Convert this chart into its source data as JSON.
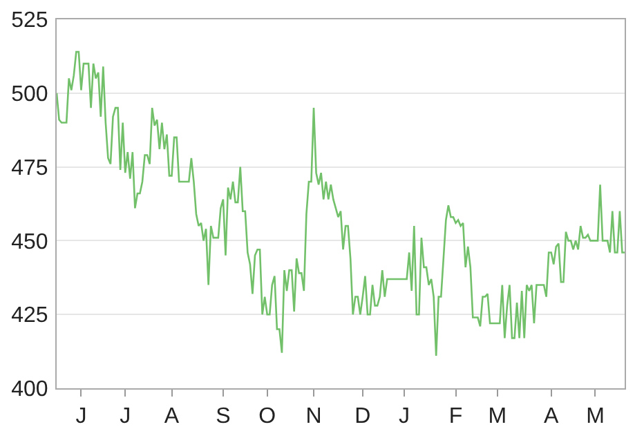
{
  "chart_data": {
    "type": "line",
    "color": "#72c16a",
    "line_style": "solid",
    "marker": "none",
    "grid": "y",
    "legend": false,
    "categories": [
      null,
      null,
      null,
      null,
      null,
      null,
      null,
      null,
      null,
      null,
      "J",
      null,
      null,
      null,
      null,
      null,
      null,
      null,
      null,
      null,
      null,
      null,
      null,
      null,
      null,
      null,
      null,
      null,
      "J",
      null,
      null,
      null,
      null,
      null,
      null,
      null,
      null,
      null,
      null,
      null,
      null,
      null,
      null,
      null,
      null,
      null,
      null,
      "A",
      null,
      null,
      null,
      null,
      null,
      null,
      null,
      null,
      null,
      null,
      null,
      null,
      null,
      null,
      null,
      null,
      null,
      null,
      null,
      null,
      "S",
      null,
      null,
      null,
      null,
      null,
      null,
      null,
      null,
      null,
      null,
      null,
      null,
      null,
      null,
      null,
      null,
      null,
      "O",
      null,
      null,
      null,
      null,
      null,
      null,
      null,
      null,
      null,
      null,
      null,
      null,
      null,
      null,
      null,
      null,
      null,
      null,
      "N",
      null,
      null,
      null,
      null,
      null,
      null,
      null,
      null,
      null,
      null,
      null,
      null,
      null,
      null,
      null,
      null,
      null,
      null,
      null,
      "D",
      null,
      null,
      null,
      null,
      null,
      null,
      null,
      null,
      null,
      null,
      null,
      null,
      null,
      null,
      null,
      null,
      "J",
      null,
      null,
      null,
      null,
      null,
      null,
      null,
      null,
      null,
      null,
      null,
      null,
      null,
      null,
      null,
      null,
      null,
      null,
      null,
      null,
      "F",
      null,
      null,
      null,
      null,
      null,
      null,
      null,
      null,
      null,
      null,
      null,
      null,
      null,
      null,
      null,
      null,
      "M",
      null,
      null,
      null,
      null,
      null,
      null,
      null,
      null,
      null,
      null,
      null,
      null,
      null,
      null,
      null,
      null,
      null,
      null,
      null,
      null,
      null,
      "A",
      null,
      null,
      null,
      null,
      null,
      null,
      null,
      null,
      null,
      null,
      null,
      null,
      null,
      null,
      null,
      null,
      null,
      "M",
      null,
      null,
      null,
      null,
      null,
      null,
      null,
      null,
      null,
      null,
      null,
      null
    ],
    "values": [
      500,
      491,
      490,
      490,
      490,
      505,
      501,
      506,
      514,
      514,
      501,
      510,
      510,
      510,
      495,
      510,
      505,
      507,
      492,
      509,
      490,
      478,
      476,
      492,
      495,
      495,
      474,
      490,
      473,
      480,
      471,
      480,
      461,
      466,
      466,
      470,
      479,
      479,
      476,
      495,
      489,
      491,
      481,
      490,
      481,
      486,
      472,
      472,
      485,
      485,
      470,
      470,
      470,
      470,
      470,
      478,
      470,
      459,
      455,
      456,
      450,
      454,
      435,
      455,
      451,
      451,
      451,
      461,
      464,
      445,
      468,
      464,
      470,
      463,
      463,
      475,
      460,
      460,
      446,
      442,
      432,
      445,
      447,
      447,
      425,
      431,
      425,
      425,
      435,
      438,
      420,
      420,
      412,
      440,
      433,
      440,
      440,
      426,
      444,
      439,
      439,
      433,
      459,
      470,
      470,
      495,
      473,
      469,
      473,
      464,
      470,
      464,
      469,
      464,
      461,
      458,
      460,
      447,
      455,
      455,
      444,
      425,
      431,
      431,
      425,
      431,
      438,
      425,
      425,
      435,
      428,
      428,
      431,
      440,
      431,
      437,
      437,
      437,
      437,
      437,
      437,
      437,
      437,
      437,
      446,
      433,
      455,
      425,
      425,
      451,
      441,
      441,
      435,
      437,
      431,
      411,
      431,
      431,
      444,
      457,
      462,
      458,
      458,
      456,
      457,
      455,
      456,
      441,
      448,
      441,
      424,
      424,
      424,
      421,
      431,
      431,
      432,
      422,
      422,
      422,
      422,
      422,
      435,
      417,
      428,
      435,
      417,
      417,
      429,
      417,
      433,
      417,
      435,
      433,
      435,
      422,
      435,
      435,
      435,
      435,
      431,
      446,
      446,
      442,
      448,
      449,
      436,
      436,
      453,
      450,
      450,
      447,
      450,
      447,
      455,
      451,
      451,
      452,
      450,
      450,
      450,
      450,
      469,
      450,
      450,
      450,
      446,
      460,
      446,
      446,
      460,
      446,
      446
    ],
    "ylim": [
      400,
      525
    ],
    "yticks": [
      400,
      425,
      450,
      475,
      500,
      525
    ]
  }
}
